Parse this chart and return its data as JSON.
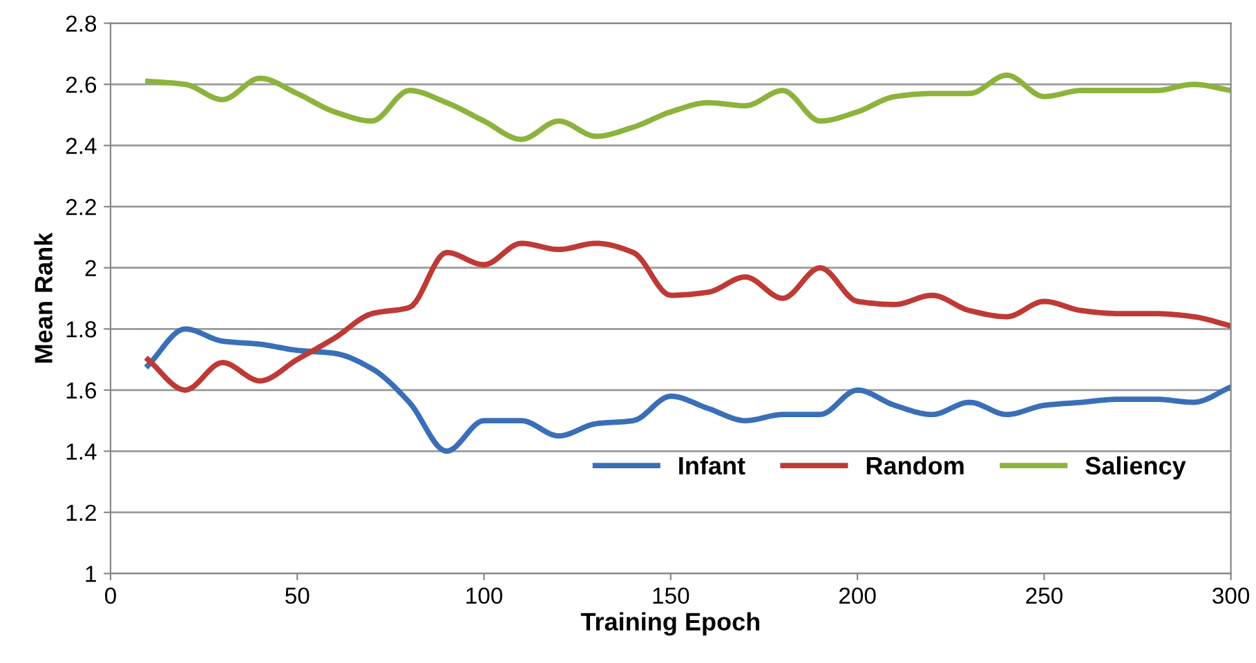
{
  "chart_data": {
    "type": "line",
    "xlabel": "Training Epoch",
    "ylabel": "Mean Rank",
    "x": [
      10,
      20,
      30,
      40,
      50,
      60,
      70,
      80,
      90,
      100,
      110,
      120,
      130,
      140,
      150,
      160,
      170,
      180,
      190,
      200,
      210,
      220,
      230,
      240,
      250,
      260,
      270,
      280,
      290,
      300
    ],
    "series": [
      {
        "name": "Infant",
        "color": "#3a6fb8",
        "values": [
          1.68,
          1.8,
          1.76,
          1.75,
          1.73,
          1.72,
          1.67,
          1.56,
          1.4,
          1.5,
          1.5,
          1.45,
          1.49,
          1.5,
          1.58,
          1.54,
          1.5,
          1.52,
          1.52,
          1.6,
          1.55,
          1.52,
          1.56,
          1.52,
          1.55,
          1.56,
          1.57,
          1.57,
          1.56,
          1.61
        ]
      },
      {
        "name": "Random",
        "color": "#be3a36",
        "values": [
          1.7,
          1.6,
          1.69,
          1.63,
          1.7,
          1.77,
          1.85,
          1.87,
          2.05,
          2.01,
          2.08,
          2.06,
          2.08,
          2.05,
          1.91,
          1.92,
          1.97,
          1.9,
          2.0,
          1.89,
          1.88,
          1.91,
          1.86,
          1.84,
          1.89,
          1.86,
          1.85,
          1.85,
          1.84,
          1.81
        ]
      },
      {
        "name": "Saliency",
        "color": "#8cb33c",
        "values": [
          2.61,
          2.6,
          2.55,
          2.62,
          2.57,
          2.51,
          2.48,
          2.58,
          2.54,
          2.48,
          2.42,
          2.48,
          2.43,
          2.46,
          2.51,
          2.54,
          2.53,
          2.58,
          2.48,
          2.51,
          2.56,
          2.57,
          2.57,
          2.63,
          2.56,
          2.58,
          2.58,
          2.58,
          2.6,
          2.58
        ]
      }
    ],
    "xlim": [
      0,
      300
    ],
    "xticks": [
      0,
      50,
      100,
      150,
      200,
      250,
      300
    ],
    "ylim": [
      1,
      2.8
    ],
    "yticks": [
      1,
      1.2,
      1.4,
      1.6,
      1.8,
      2,
      2.2,
      2.4,
      2.6,
      2.8
    ],
    "grid": "y",
    "legend": "bottom right",
    "marker": "none",
    "line_style": "solid"
  }
}
